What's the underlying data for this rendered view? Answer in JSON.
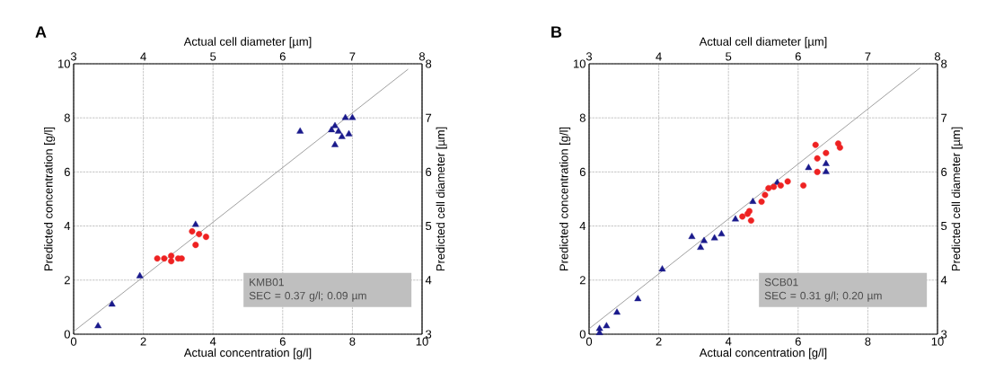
{
  "chart_data": [
    {
      "type": "scatter",
      "title": "A",
      "xlabel": "Actual concentration [g/l]",
      "ylabel": "Predicted concentration [g/l]",
      "x2label": "Actual cell diameter [µm]",
      "y2label": "Predicted cell diameter [µm]",
      "xlim": [
        0,
        10
      ],
      "ylim": [
        0,
        10
      ],
      "xticks": [
        0,
        2,
        4,
        6,
        8,
        10
      ],
      "yticks": [
        0,
        2,
        4,
        6,
        8,
        10
      ],
      "x2lim": [
        3,
        8
      ],
      "x2ticks": [
        3,
        4,
        5,
        6,
        7,
        8
      ],
      "y2lim": [
        3,
        8
      ],
      "y2ticks": [
        3,
        4,
        5,
        6,
        7,
        8
      ],
      "grid": true,
      "annotations": [
        "KMB01",
        "SEC = 0.37 g/l; 0.09 µm"
      ],
      "series": [
        {
          "type": "line",
          "color": "#888888",
          "marker": "none",
          "x": [
            0,
            9.6
          ],
          "values": [
            0.1,
            9.8
          ]
        },
        {
          "color": "#1a1a8c",
          "marker": "triangle",
          "x": [
            0.7,
            1.1,
            1.9,
            3.5,
            6.5,
            7.4,
            7.5,
            7.7,
            7.9,
            7.5,
            7.8,
            8.0,
            7.6
          ],
          "values": [
            0.3,
            1.1,
            2.15,
            4.05,
            7.5,
            7.55,
            7.0,
            7.3,
            7.4,
            7.7,
            8.0,
            8.0,
            7.5
          ]
        },
        {
          "color": "#ee2222",
          "marker": "circle",
          "x": [
            2.4,
            2.6,
            2.8,
            2.8,
            3.0,
            3.1,
            3.5,
            3.4,
            3.6,
            3.8
          ],
          "values": [
            2.8,
            2.8,
            2.9,
            2.7,
            2.8,
            2.8,
            3.3,
            3.8,
            3.7,
            3.6
          ]
        }
      ]
    },
    {
      "type": "scatter",
      "title": "B",
      "xlabel": "Actual concentration [g/l]",
      "ylabel": "Predicted concentration [g/l]",
      "x2label": "Actual cell diameter [µm]",
      "y2label": "Predicted cell diameter [µm]",
      "xlim": [
        0,
        10
      ],
      "ylim": [
        0,
        10
      ],
      "xticks": [
        0,
        2,
        4,
        6,
        8,
        10
      ],
      "yticks": [
        0,
        2,
        4,
        6,
        8,
        10
      ],
      "x2lim": [
        3,
        8
      ],
      "x2ticks": [
        3,
        4,
        5,
        6,
        7,
        8
      ],
      "y2lim": [
        3,
        8
      ],
      "y2ticks": [
        3,
        4,
        5,
        6,
        7,
        8
      ],
      "grid": true,
      "annotations": [
        "SCB01",
        "SEC = 0.31 g/l; 0.20 µm"
      ],
      "series": [
        {
          "type": "line",
          "color": "#888888",
          "marker": "none",
          "x": [
            0,
            9.5
          ],
          "values": [
            0.2,
            9.85
          ]
        },
        {
          "color": "#1a1a8c",
          "marker": "triangle",
          "x": [
            0.3,
            0.3,
            0.5,
            0.8,
            1.4,
            2.1,
            2.95,
            3.2,
            3.3,
            3.6,
            3.8,
            4.2,
            4.7,
            5.4,
            6.3,
            6.8,
            6.8
          ],
          "values": [
            0.05,
            0.2,
            0.3,
            0.8,
            1.3,
            2.4,
            3.6,
            3.2,
            3.45,
            3.55,
            3.7,
            4.25,
            4.9,
            5.6,
            6.15,
            6.3,
            6.0
          ]
        },
        {
          "color": "#ee2222",
          "marker": "circle",
          "x": [
            4.4,
            4.55,
            4.65,
            4.6,
            4.95,
            5.05,
            5.15,
            5.3,
            5.5,
            5.7,
            6.15,
            6.55,
            6.55,
            6.8,
            6.5,
            7.15,
            7.2
          ],
          "values": [
            4.35,
            4.45,
            4.2,
            4.55,
            4.9,
            5.15,
            5.4,
            5.45,
            5.5,
            5.65,
            5.5,
            6.0,
            6.5,
            6.7,
            7.0,
            7.05,
            6.9
          ]
        }
      ]
    }
  ]
}
